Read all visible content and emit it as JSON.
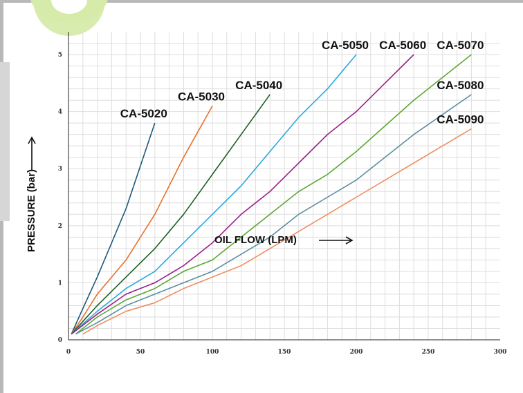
{
  "chart_data": {
    "type": "line",
    "title": "",
    "xlabel": "OIL FLOW (LPM)",
    "ylabel": "PRESSURE (bar)",
    "xlim": [
      0,
      300
    ],
    "ylim": [
      0,
      5.4
    ],
    "x_ticks": [
      "0",
      "50",
      "100",
      "150",
      "200",
      "250",
      "300"
    ],
    "y_ticks": [
      "0",
      "1",
      "2",
      "3",
      "4",
      "5"
    ],
    "grid": true,
    "series": [
      {
        "name": "CA-5020",
        "color": "#1a5a78",
        "x": [
          2,
          10,
          20,
          40,
          60
        ],
        "y": [
          0.1,
          0.55,
          1.1,
          2.3,
          3.8
        ]
      },
      {
        "name": "CA-5030",
        "color": "#e8702a",
        "x": [
          2,
          10,
          20,
          40,
          60,
          80,
          100
        ],
        "y": [
          0.1,
          0.4,
          0.8,
          1.4,
          2.2,
          3.2,
          4.1
        ]
      },
      {
        "name": "CA-5040",
        "color": "#1d5e22",
        "x": [
          2,
          20,
          40,
          60,
          80,
          100,
          120,
          140
        ],
        "y": [
          0.1,
          0.6,
          1.1,
          1.6,
          2.2,
          2.9,
          3.6,
          4.3
        ]
      },
      {
        "name": "CA-5050",
        "color": "#29a9d8",
        "x": [
          2,
          20,
          40,
          60,
          80,
          100,
          120,
          140,
          160,
          180,
          200
        ],
        "y": [
          0.1,
          0.5,
          0.9,
          1.2,
          1.7,
          2.2,
          2.7,
          3.3,
          3.9,
          4.4,
          5.0
        ]
      },
      {
        "name": "CA-5060",
        "color": "#9a1f8a",
        "x": [
          2,
          20,
          40,
          60,
          80,
          100,
          120,
          140,
          160,
          180,
          200,
          240
        ],
        "y": [
          0.1,
          0.45,
          0.8,
          1.0,
          1.3,
          1.7,
          2.2,
          2.6,
          3.1,
          3.6,
          4.0,
          5.0
        ]
      },
      {
        "name": "CA-5070",
        "color": "#5aa832",
        "x": [
          5,
          20,
          40,
          60,
          80,
          100,
          120,
          140,
          160,
          180,
          200,
          240,
          280
        ],
        "y": [
          0.1,
          0.4,
          0.7,
          0.9,
          1.2,
          1.4,
          1.8,
          2.2,
          2.6,
          2.9,
          3.3,
          4.2,
          5.0
        ]
      },
      {
        "name": "CA-5080",
        "color": "#5b8ea0",
        "x": [
          5,
          20,
          40,
          60,
          80,
          100,
          120,
          140,
          160,
          180,
          200,
          240,
          280
        ],
        "y": [
          0.1,
          0.3,
          0.6,
          0.8,
          1.0,
          1.2,
          1.5,
          1.8,
          2.2,
          2.5,
          2.8,
          3.6,
          4.3
        ]
      },
      {
        "name": "CA-5090",
        "color": "#f08e60",
        "x": [
          10,
          20,
          40,
          60,
          80,
          100,
          120,
          140,
          160,
          180,
          200,
          240,
          280
        ],
        "y": [
          0.1,
          0.25,
          0.5,
          0.65,
          0.9,
          1.1,
          1.3,
          1.6,
          1.9,
          2.2,
          2.5,
          3.1,
          3.7
        ]
      }
    ]
  }
}
